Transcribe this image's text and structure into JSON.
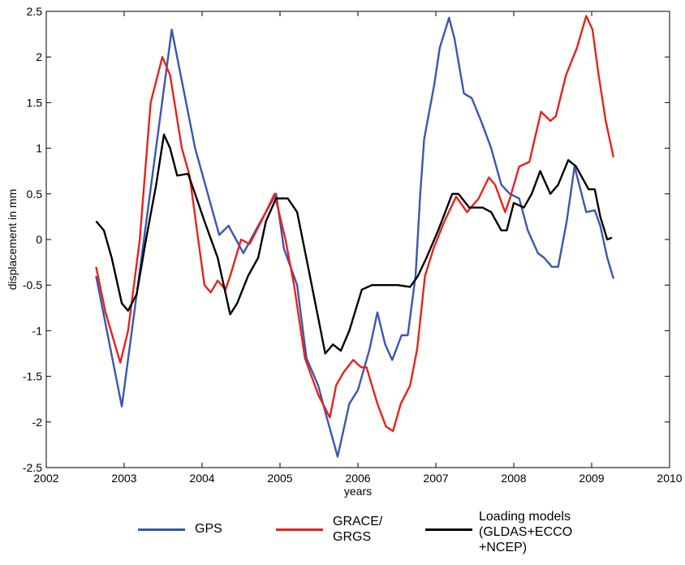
{
  "chart_data": {
    "type": "line",
    "xlabel": "years",
    "ylabel": "displacement in mm",
    "xlim": [
      2002,
      2010
    ],
    "ylim": [
      -2.5,
      2.5
    ],
    "xticks": [
      2002,
      2003,
      2004,
      2005,
      2006,
      2007,
      2008,
      2009,
      2010
    ],
    "yticks": [
      -2.5,
      -2,
      -1.5,
      -1,
      -0.5,
      0,
      0.5,
      1,
      1.5,
      2,
      2.5
    ],
    "grid": false,
    "series": [
      {
        "name": "GPS",
        "color": "#3a56b0",
        "x": [
          2002.64,
          2002.97,
          2003.61,
          2003.91,
          2004.22,
          2004.34,
          2004.53,
          2004.72,
          2004.95,
          2005.05,
          2005.22,
          2005.34,
          2005.49,
          2005.6,
          2005.74,
          2005.89,
          2006.0,
          2006.15,
          2006.25,
          2006.35,
          2006.44,
          2006.56,
          2006.64,
          2006.74,
          2006.8,
          2006.85,
          2006.98,
          2007.05,
          2007.17,
          2007.24,
          2007.36,
          2007.46,
          2007.58,
          2007.71,
          2007.84,
          2007.95,
          2008.07,
          2008.18,
          2008.31,
          2008.39,
          2008.49,
          2008.57,
          2008.68,
          2008.78,
          2008.93,
          2009.04,
          2009.11,
          2009.2,
          2009.28
        ],
        "values": [
          -0.4,
          -1.83,
          2.3,
          1.0,
          0.05,
          0.15,
          -0.15,
          0.15,
          0.5,
          -0.1,
          -0.5,
          -1.3,
          -1.6,
          -1.95,
          -2.38,
          -1.8,
          -1.65,
          -1.2,
          -0.8,
          -1.15,
          -1.32,
          -1.05,
          -1.05,
          -0.4,
          0.5,
          1.1,
          1.7,
          2.1,
          2.43,
          2.2,
          1.6,
          1.55,
          1.3,
          1.0,
          0.6,
          0.5,
          0.45,
          0.1,
          -0.15,
          -0.2,
          -0.3,
          -0.3,
          0.2,
          0.8,
          0.3,
          0.32,
          0.15,
          -0.2,
          -0.43
        ]
      },
      {
        "name": "GRACE/ GRGS",
        "color": "#e8221c",
        "x": [
          2002.64,
          2002.76,
          2002.95,
          2003.05,
          2003.2,
          2003.34,
          2003.49,
          2003.59,
          2003.74,
          2003.84,
          2003.95,
          2004.03,
          2004.11,
          2004.2,
          2004.3,
          2004.36,
          2004.5,
          2004.61,
          2004.76,
          2004.93,
          2005.07,
          2005.18,
          2005.32,
          2005.49,
          2005.64,
          2005.72,
          2005.82,
          2005.94,
          2006.04,
          2006.11,
          2006.25,
          2006.36,
          2006.45,
          2006.55,
          2006.67,
          2006.76,
          2006.86,
          2006.97,
          2007.11,
          2007.26,
          2007.4,
          2007.55,
          2007.68,
          2007.76,
          2007.89,
          2007.95,
          2008.07,
          2008.2,
          2008.35,
          2008.47,
          2008.54,
          2008.67,
          2008.81,
          2008.93,
          2009.01,
          2009.09,
          2009.18,
          2009.28
        ],
        "values": [
          -0.3,
          -0.8,
          -1.35,
          -1.0,
          0,
          1.5,
          2.0,
          1.8,
          1.0,
          0.7,
          0,
          -0.5,
          -0.58,
          -0.45,
          -0.55,
          -0.4,
          0,
          -0.05,
          0.2,
          0.5,
          0.0,
          -0.5,
          -1.3,
          -1.7,
          -1.95,
          -1.6,
          -1.45,
          -1.32,
          -1.4,
          -1.4,
          -1.8,
          -2.05,
          -2.1,
          -1.8,
          -1.6,
          -1.2,
          -0.4,
          -0.1,
          0.2,
          0.47,
          0.3,
          0.45,
          0.68,
          0.6,
          0.3,
          0.45,
          0.8,
          0.85,
          1.4,
          1.3,
          1.35,
          1.8,
          2.1,
          2.45,
          2.3,
          1.8,
          1.3,
          0.9
        ]
      },
      {
        "name": "Loading models (GLDAS+ECCO +NCEP)",
        "color": "#000000",
        "x": [
          2002.64,
          2002.74,
          2002.84,
          2002.97,
          2003.05,
          2003.16,
          2003.28,
          2003.41,
          2003.51,
          2003.59,
          2003.68,
          2003.82,
          2003.91,
          2004.03,
          2004.2,
          2004.36,
          2004.45,
          2004.59,
          2004.72,
          2004.82,
          2004.95,
          2005.1,
          2005.22,
          2005.36,
          2005.5,
          2005.58,
          2005.68,
          2005.78,
          2005.89,
          2006.05,
          2006.18,
          2006.3,
          2006.51,
          2006.67,
          2006.77,
          2006.88,
          2007.03,
          2007.21,
          2007.29,
          2007.43,
          2007.6,
          2007.71,
          2007.84,
          2007.91,
          2008.0,
          2008.13,
          2008.23,
          2008.34,
          2008.47,
          2008.57,
          2008.7,
          2008.8,
          2008.96,
          2009.04,
          2009.11,
          2009.2,
          2009.26
        ],
        "values": [
          0.2,
          0.1,
          -0.2,
          -0.7,
          -0.78,
          -0.6,
          0,
          0.6,
          1.15,
          1.0,
          0.7,
          0.72,
          0.5,
          0.2,
          -0.2,
          -0.82,
          -0.7,
          -0.4,
          -0.2,
          0.2,
          0.45,
          0.45,
          0.3,
          -0.3,
          -0.9,
          -1.25,
          -1.15,
          -1.22,
          -1.0,
          -0.55,
          -0.5,
          -0.5,
          -0.5,
          -0.52,
          -0.4,
          -0.2,
          0.1,
          0.5,
          0.5,
          0.35,
          0.35,
          0.3,
          0.1,
          0.1,
          0.4,
          0.35,
          0.5,
          0.75,
          0.5,
          0.6,
          0.87,
          0.8,
          0.55,
          0.55,
          0.25,
          0,
          0.02
        ]
      }
    ]
  }
}
